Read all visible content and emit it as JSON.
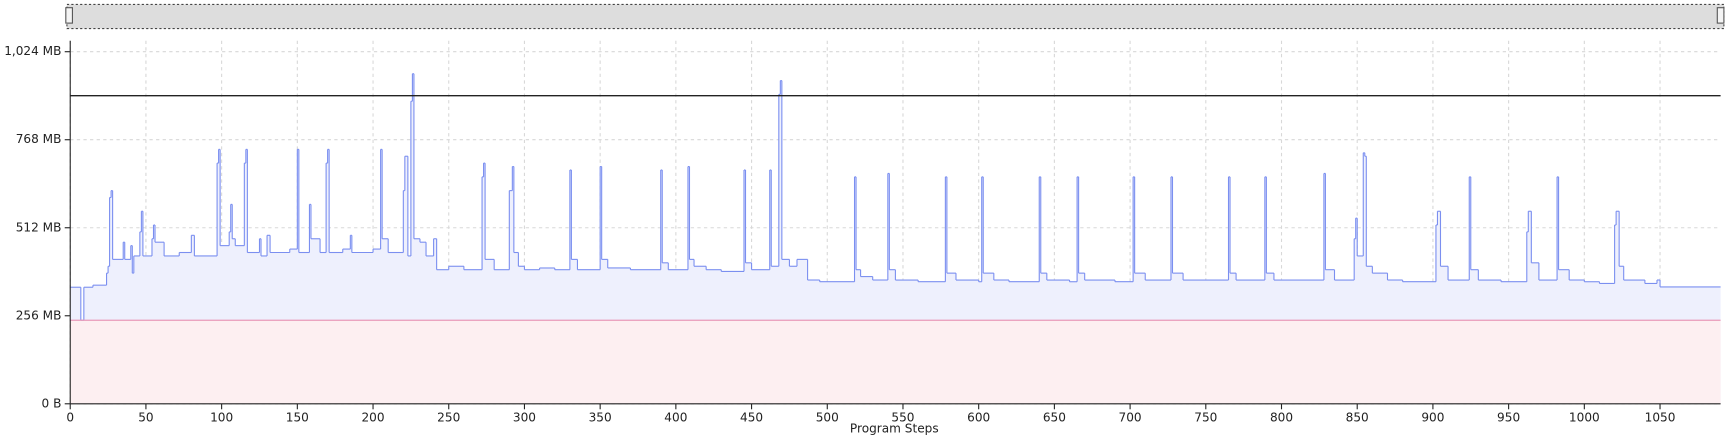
{
  "chart_data": {
    "type": "step-area",
    "x_label": "Program Steps",
    "color": "#7b8ff0",
    "fill": "#eef0fd",
    "xlim": [
      0,
      1090
    ],
    "ylim": [
      0,
      1056
    ],
    "xticks": [
      0,
      50,
      100,
      150,
      200,
      250,
      300,
      350,
      400,
      450,
      500,
      550,
      600,
      650,
      700,
      750,
      800,
      850,
      900,
      950,
      1000,
      1050
    ],
    "yticks": [
      {
        "value": 0,
        "label": "0 B"
      },
      {
        "value": 256,
        "label": "256 MB"
      },
      {
        "value": 512,
        "label": "512 MB"
      },
      {
        "value": 768,
        "label": "768 MB"
      },
      {
        "value": 1024,
        "label": "1,024 MB"
      }
    ],
    "grid": true,
    "reference_lines": [
      {
        "value": 896,
        "color": "#222222"
      },
      {
        "value": 243,
        "color": "#e89ab8",
        "fill": "#fdeff1"
      }
    ],
    "x": [
      0,
      7,
      9,
      15,
      24,
      25,
      26,
      27,
      28,
      35,
      36,
      40,
      41,
      42,
      46,
      47,
      48,
      54,
      55,
      56,
      62,
      72,
      80,
      82,
      97,
      98,
      99,
      105,
      106,
      107,
      109,
      115,
      116,
      117,
      125,
      126,
      130,
      132,
      145,
      150,
      151,
      158,
      159,
      165,
      169,
      170,
      171,
      180,
      185,
      186,
      200,
      205,
      206,
      210,
      220,
      221,
      223,
      225,
      226,
      227,
      231,
      235,
      240,
      242,
      250,
      260,
      272,
      273,
      274,
      280,
      290,
      292,
      293,
      296,
      300,
      310,
      320,
      330,
      331,
      335,
      350,
      351,
      355,
      370,
      390,
      391,
      395,
      408,
      409,
      412,
      420,
      430,
      445,
      446,
      450,
      462,
      463,
      468,
      469,
      470,
      475,
      480,
      487,
      495,
      518,
      519,
      522,
      530,
      540,
      541,
      545,
      560,
      578,
      579,
      585,
      600,
      602,
      603,
      610,
      620,
      640,
      641,
      645,
      660,
      665,
      666,
      670,
      690,
      702,
      703,
      710,
      727,
      728,
      735,
      765,
      766,
      770,
      789,
      790,
      795,
      828,
      829,
      835,
      848,
      849,
      850,
      854,
      855,
      856,
      860,
      870,
      880,
      902,
      903,
      905,
      910,
      924,
      925,
      930,
      945,
      962,
      963,
      965,
      970,
      982,
      983,
      990,
      1000,
      1010,
      1020,
      1021,
      1023,
      1026,
      1040,
      1048,
      1050
    ],
    "values": [
      339,
      243,
      339,
      345,
      380,
      400,
      600,
      620,
      420,
      470,
      420,
      460,
      380,
      430,
      500,
      560,
      430,
      480,
      520,
      470,
      430,
      440,
      490,
      430,
      700,
      740,
      460,
      500,
      580,
      480,
      460,
      700,
      740,
      440,
      480,
      430,
      490,
      440,
      450,
      740,
      440,
      580,
      480,
      440,
      700,
      740,
      440,
      450,
      490,
      440,
      450,
      740,
      480,
      440,
      620,
      720,
      430,
      880,
      960,
      480,
      470,
      430,
      480,
      390,
      400,
      390,
      660,
      700,
      420,
      390,
      620,
      690,
      440,
      400,
      390,
      395,
      390,
      680,
      420,
      390,
      690,
      420,
      395,
      390,
      680,
      410,
      390,
      690,
      420,
      400,
      390,
      385,
      680,
      410,
      390,
      680,
      400,
      900,
      940,
      420,
      400,
      420,
      360,
      355,
      660,
      390,
      370,
      360,
      670,
      390,
      360,
      355,
      660,
      380,
      360,
      355,
      660,
      380,
      360,
      355,
      660,
      380,
      360,
      355,
      660,
      380,
      360,
      355,
      660,
      380,
      360,
      660,
      380,
      360,
      660,
      380,
      360,
      660,
      380,
      360,
      670,
      390,
      360,
      480,
      540,
      430,
      730,
      720,
      400,
      380,
      360,
      355,
      520,
      560,
      400,
      360,
      660,
      390,
      360,
      355,
      500,
      560,
      410,
      360,
      660,
      390,
      360,
      355,
      350,
      520,
      560,
      400,
      360,
      350,
      360,
      340
    ]
  }
}
